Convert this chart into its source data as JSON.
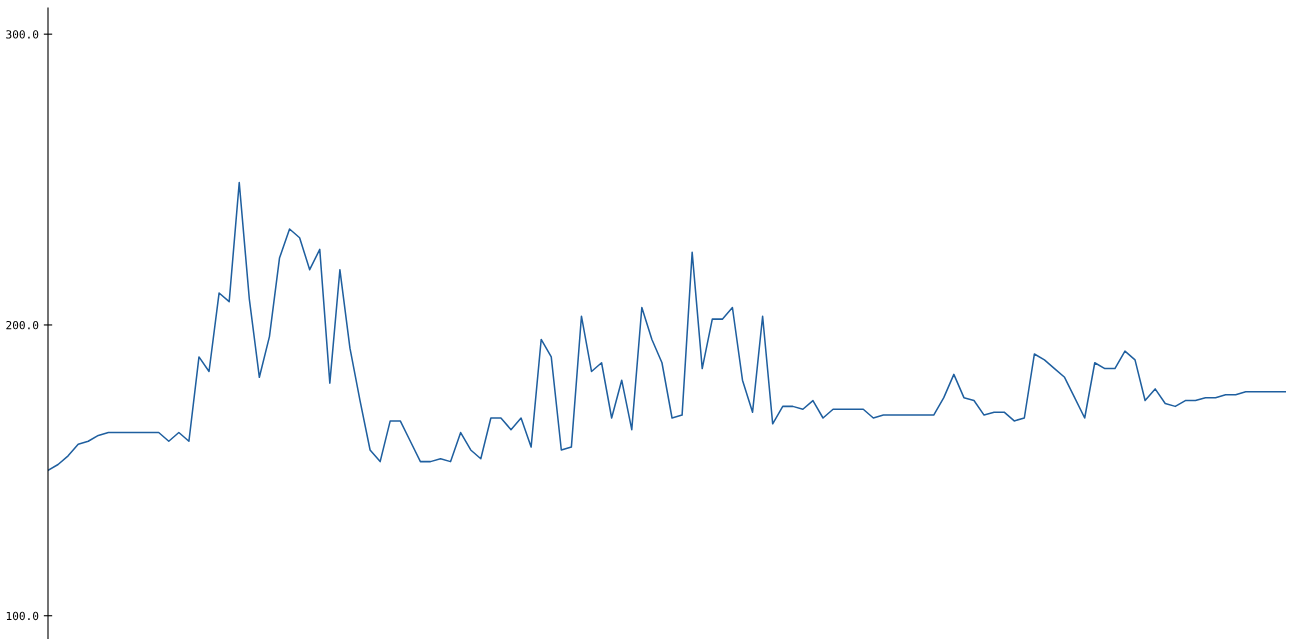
{
  "chart_data": {
    "type": "line",
    "categories": [
      null,
      null,
      null,
      null,
      null,
      null,
      null,
      null,
      null,
      null,
      null,
      null,
      null,
      null,
      null,
      null,
      null,
      null,
      null,
      null,
      null,
      null,
      null,
      null,
      null,
      null,
      null,
      null,
      null,
      null,
      null,
      null,
      null,
      null,
      null,
      null,
      null,
      null,
      null,
      null,
      null,
      null,
      null,
      null,
      null,
      null,
      null,
      null,
      null,
      null,
      null,
      null,
      null,
      null,
      null,
      null,
      null,
      null,
      null,
      null,
      null,
      null,
      null,
      null,
      null,
      null,
      null,
      null,
      null,
      null,
      null,
      null,
      null,
      null,
      null,
      null,
      null,
      null,
      null,
      null,
      null,
      null,
      null,
      null,
      null,
      null,
      null,
      null,
      null,
      null,
      null,
      null,
      null,
      null,
      null,
      null,
      null,
      null,
      null,
      null,
      null,
      null,
      null,
      null,
      null,
      null,
      null,
      null,
      null,
      null,
      null,
      null,
      null,
      null,
      null,
      null,
      null,
      null,
      null,
      null,
      null,
      null,
      null,
      null
    ],
    "series": [
      {
        "color": "#1f5f9f",
        "values": [
          150,
          152,
          155,
          159,
          160,
          162,
          163,
          163,
          163,
          163,
          163,
          163,
          160,
          163,
          160,
          189,
          184,
          211,
          208,
          249,
          209,
          182,
          196,
          223,
          233,
          230,
          219,
          226,
          180,
          219,
          192,
          174,
          157,
          153,
          167,
          167,
          160,
          153,
          153,
          154,
          153,
          163,
          157,
          154,
          168,
          168,
          164,
          168,
          158,
          195,
          189,
          157,
          158,
          203,
          184,
          187,
          168,
          181,
          164,
          206,
          195,
          187,
          168,
          169,
          225,
          185,
          202,
          202,
          206,
          181,
          170,
          203,
          166,
          172,
          172,
          171,
          174,
          168,
          171,
          171,
          171,
          171,
          168,
          169,
          169,
          169,
          169,
          169,
          169,
          175,
          183,
          175,
          174,
          169,
          170,
          170,
          167,
          168,
          190,
          188,
          185,
          182,
          175,
          168,
          187,
          185,
          185,
          191,
          188,
          174,
          178,
          173,
          172,
          174,
          174,
          175,
          175,
          176,
          176,
          177,
          177,
          177,
          177,
          177
        ]
      }
    ],
    "ylim": [
      92,
      309
    ],
    "yticks": [
      {
        "value": 100,
        "label": "100.0"
      },
      {
        "value": 200,
        "label": "200.0"
      },
      {
        "value": 300,
        "label": "300.0"
      }
    ],
    "tick_labels": "y",
    "grid": false,
    "legend": false,
    "marker": "none",
    "line_style": "solid"
  }
}
